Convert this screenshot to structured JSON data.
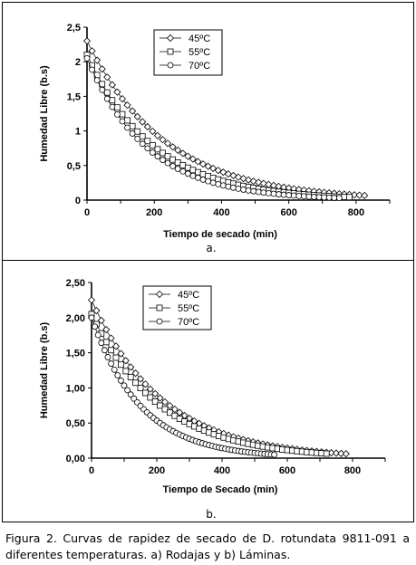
{
  "chart_data": [
    {
      "type": "scatter",
      "panel_label": "a.",
      "xlabel": "Tiempo de secado (min)",
      "ylabel": "Humedad Libre (b.s)",
      "xlim": [
        0,
        900
      ],
      "ylim": [
        0,
        2.5
      ],
      "x_ticks": [
        "0",
        "200",
        "400",
        "600",
        "800"
      ],
      "y_ticks": [
        "0",
        "0,5",
        "1",
        "1,5",
        "2",
        "2,5"
      ],
      "legend_position": "top-center",
      "series": [
        {
          "name": "45ºC",
          "marker": "diamond",
          "k": 0.0043,
          "y0": 2.3,
          "step": 15,
          "xmax": 825
        },
        {
          "name": "55ºC",
          "marker": "square",
          "k": 0.005,
          "y0": 2.1,
          "step": 15,
          "xmax": 780
        },
        {
          "name": "70ºC",
          "marker": "circle",
          "k": 0.0056,
          "y0": 2.05,
          "step": 15,
          "xmax": 760
        }
      ]
    },
    {
      "type": "scatter",
      "panel_label": "b.",
      "xlabel": "Tiempo de Secado (min)",
      "ylabel": "Humedad Libre (b.s)",
      "xlim": [
        0,
        900
      ],
      "ylim": [
        0,
        2.5
      ],
      "x_ticks": [
        "0",
        "200",
        "400",
        "600",
        "800"
      ],
      "y_ticks": [
        "0,00",
        "0,50",
        "1,00",
        "1,50",
        "2,00",
        "2,50"
      ],
      "legend_position": "top-center",
      "series": [
        {
          "name": "45ºC",
          "marker": "diamond",
          "k": 0.0046,
          "y0": 2.25,
          "step": 15,
          "xmax": 780
        },
        {
          "name": "55ºC",
          "marker": "square",
          "k": 0.0048,
          "y0": 2.05,
          "step": 15,
          "xmax": 720
        },
        {
          "name": "70ºC",
          "marker": "circle",
          "k": 0.0066,
          "y0": 2.0,
          "step": 10,
          "xmax": 560
        }
      ]
    }
  ],
  "caption": "Figura 2. Curvas de rapidez de secado de D. rotundata 9811-091 a diferentes temperaturas.  a) Rodajas y  b) Láminas."
}
